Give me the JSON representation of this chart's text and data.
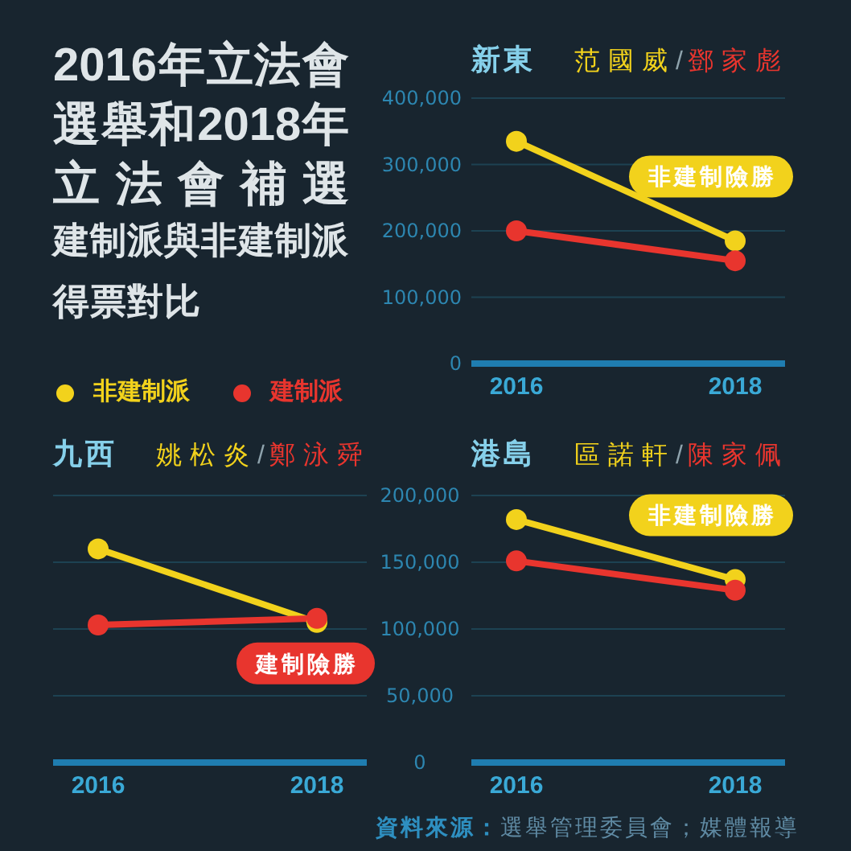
{
  "chart_data": [
    {
      "type": "other",
      "title": "2016年立法會選舉和2018年立法會補選",
      "subtitle": "建制派與非建制派得票對比"
    },
    {
      "type": "line",
      "title": "新東",
      "subtitle": "范國威/鄧家彪",
      "categories": [
        "2016",
        "2018"
      ],
      "series": [
        {
          "name": "非建制派",
          "color": "#f2d21c",
          "values": [
            335000,
            185000
          ]
        },
        {
          "name": "建制派",
          "color": "#e8352e",
          "values": [
            200000,
            155000
          ]
        }
      ],
      "ylim": [
        0,
        400000
      ],
      "yticks": [
        0,
        {
          "value": 100000,
          "label": "100,000"
        },
        {
          "value": 200000,
          "label": "200,000"
        },
        {
          "value": 300000,
          "label": "300,000"
        },
        {
          "value": 400000,
          "label": "400,000"
        }
      ],
      "grid": "y",
      "legend": "left",
      "marker": "circle",
      "line_style": "solid",
      "annotations": [
        {
          "text": "非建制險勝",
          "x": "2018",
          "y": 185000
        }
      ]
    },
    {
      "type": "line",
      "title": "九西",
      "subtitle": "姚松炎/鄭泳舜",
      "categories": [
        "2016",
        "2018"
      ],
      "series": [
        {
          "color": "#f2d21c",
          "values": [
            160000,
            105000
          ]
        },
        {
          "color": "#e8352e",
          "values": [
            103000,
            108000
          ]
        }
      ],
      "ylim": [
        0,
        200000
      ],
      "yticks": [
        0,
        {
          "value": 50000,
          "label": "50,000"
        },
        {
          "value": 100000,
          "label": "100,000"
        },
        {
          "value": 150000,
          "label": "150,000"
        },
        {
          "value": 200000,
          "label": "200,000"
        }
      ],
      "grid": "y",
      "marker": "circle",
      "line_style": "solid",
      "annotations": [
        {
          "text": "建制險勝",
          "x": "2018",
          "y": 108000
        }
      ]
    },
    {
      "type": "line",
      "title": "港島",
      "subtitle": "區諾軒/陳家佩",
      "categories": [
        "2016",
        "2018"
      ],
      "series": [
        {
          "color": "#f2d21c",
          "values": [
            182000,
            137000
          ]
        },
        {
          "color": "#e8352e",
          "values": [
            151000,
            129000
          ]
        }
      ],
      "ylim": [
        0,
        200000
      ],
      "yticks": [
        0,
        50000,
        100000,
        150000,
        200000
      ],
      "grid": "y",
      "tick_labels": "x",
      "marker": "circle",
      "line_style": "solid",
      "annotations": [
        {
          "text": "非建制險勝",
          "x": "2018",
          "y": 137000
        },
        "資料來源：選舉管理委員會；媒體報導"
      ]
    }
  ]
}
